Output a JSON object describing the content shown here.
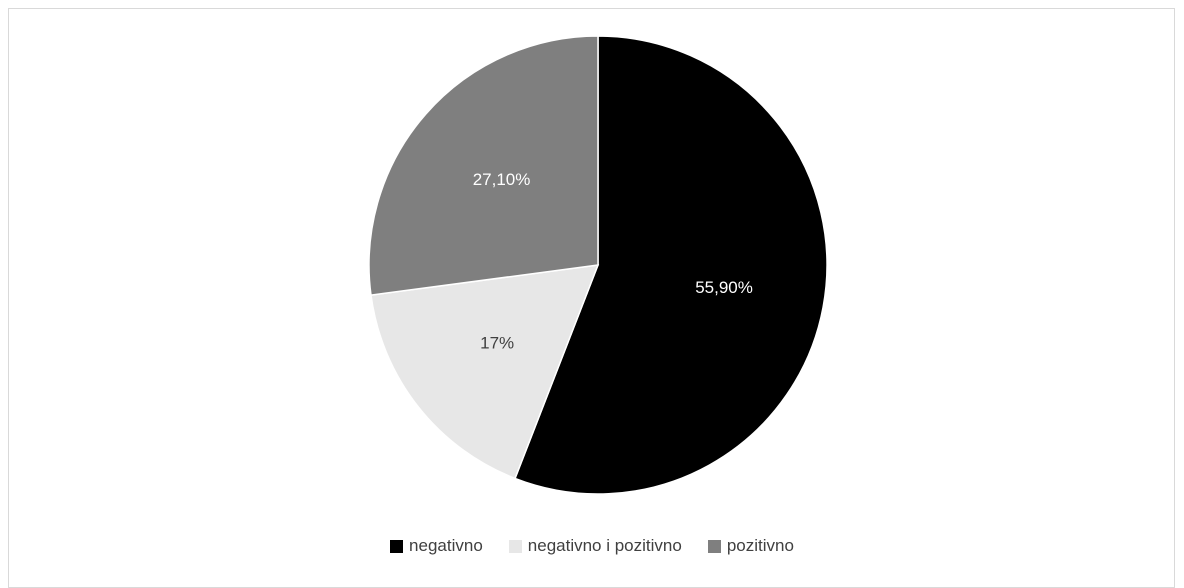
{
  "chart_data": {
    "type": "pie",
    "title": "",
    "start_angle": "12 o'clock",
    "direction": "clockwise",
    "legend_position": "bottom",
    "slices": [
      {
        "name": "negativno",
        "value": 55.9,
        "label": "55,90%",
        "color": "#000000",
        "label_color": "#ffffff"
      },
      {
        "name": "negativno i pozitivno",
        "value": 17.0,
        "label": "17%",
        "color": "#e7e7e7",
        "label_color": "#404040"
      },
      {
        "name": "pozitivno",
        "value": 27.1,
        "label": "27,10%",
        "color": "#7f7f7f",
        "label_color": "#ffffff"
      }
    ]
  }
}
